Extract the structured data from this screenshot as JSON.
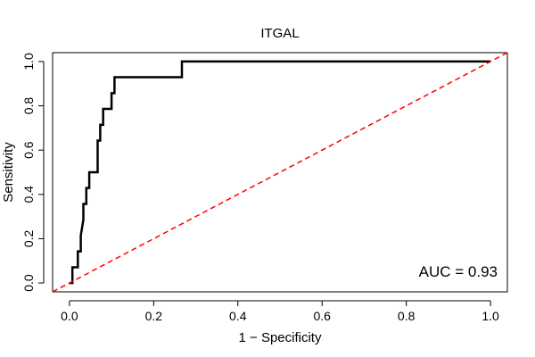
{
  "chart_data": {
    "type": "line",
    "title": "ITGAL",
    "xlabel": "1 − Specificity",
    "ylabel": "Sensitivity",
    "xlim": [
      -0.04,
      1.04
    ],
    "ylim": [
      -0.04,
      1.04
    ],
    "xticks": [
      0.0,
      0.2,
      0.4,
      0.6,
      0.8,
      1.0
    ],
    "xtick_labels": [
      "0.0",
      "0.2",
      "0.4",
      "0.6",
      "0.8",
      "1.0"
    ],
    "yticks": [
      0.0,
      0.2,
      0.4,
      0.6,
      0.8,
      1.0
    ],
    "ytick_labels": [
      "0.0",
      "0.2",
      "0.4",
      "0.6",
      "0.8",
      "1.0"
    ],
    "grid": false,
    "series": [
      {
        "style": "solid",
        "color": "#000000",
        "x": [
          0.0,
          0.007,
          0.007,
          0.013,
          0.02,
          0.02,
          0.027,
          0.027,
          0.033,
          0.033,
          0.04,
          0.04,
          0.047,
          0.047,
          0.067,
          0.067,
          0.073,
          0.073,
          0.08,
          0.08,
          0.1,
          0.1,
          0.107,
          0.107,
          0.267,
          0.267,
          1.0
        ],
        "y": [
          0.0,
          0.0,
          0.071,
          0.071,
          0.071,
          0.143,
          0.143,
          0.214,
          0.286,
          0.357,
          0.357,
          0.429,
          0.429,
          0.5,
          0.5,
          0.643,
          0.643,
          0.714,
          0.714,
          0.786,
          0.786,
          0.857,
          0.857,
          0.929,
          0.929,
          1.0,
          1.0
        ]
      },
      {
        "style": "dashed",
        "color": "#ff0000",
        "x": [
          -0.04,
          1.04
        ],
        "y": [
          -0.04,
          1.04
        ]
      }
    ],
    "annotations": [
      {
        "text": "AUC = 0.93"
      }
    ]
  }
}
